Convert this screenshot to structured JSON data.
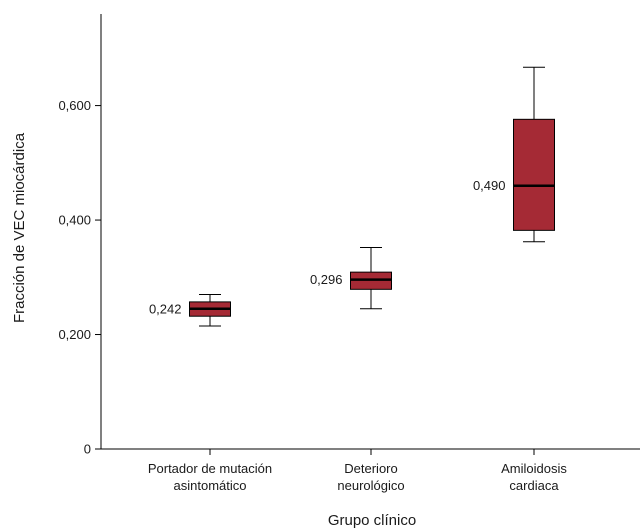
{
  "chart_data": {
    "type": "box",
    "title": "",
    "xlabel": "Grupo clínico",
    "ylabel": "Fracción de VEC miocárdica",
    "ylim": [
      0,
      0.76
    ],
    "yticks": [
      {
        "value": 0,
        "label": "0"
      },
      {
        "value": 0.2,
        "label": "0,200"
      },
      {
        "value": 0.4,
        "label": "0,400"
      },
      {
        "value": 0.6,
        "label": "0,600"
      }
    ],
    "categories": [
      {
        "lines": [
          "Portador de mutación",
          "asintomático"
        ]
      },
      {
        "lines": [
          "Deterioro",
          "neurológico"
        ]
      },
      {
        "lines": [
          "Amiloidosis",
          "cardiaca"
        ]
      }
    ],
    "boxes": [
      {
        "min": 0.215,
        "q1": 0.232,
        "median": 0.245,
        "q3": 0.257,
        "max": 0.27,
        "label": "0,242"
      },
      {
        "min": 0.245,
        "q1": 0.279,
        "median": 0.296,
        "q3": 0.309,
        "max": 0.352,
        "label": "0,296"
      },
      {
        "min": 0.362,
        "q1": 0.382,
        "median": 0.46,
        "q3": 0.576,
        "max": 0.667,
        "label": "0,490"
      }
    ],
    "box_color": "#a52a35",
    "grid": false,
    "legend": "none"
  }
}
